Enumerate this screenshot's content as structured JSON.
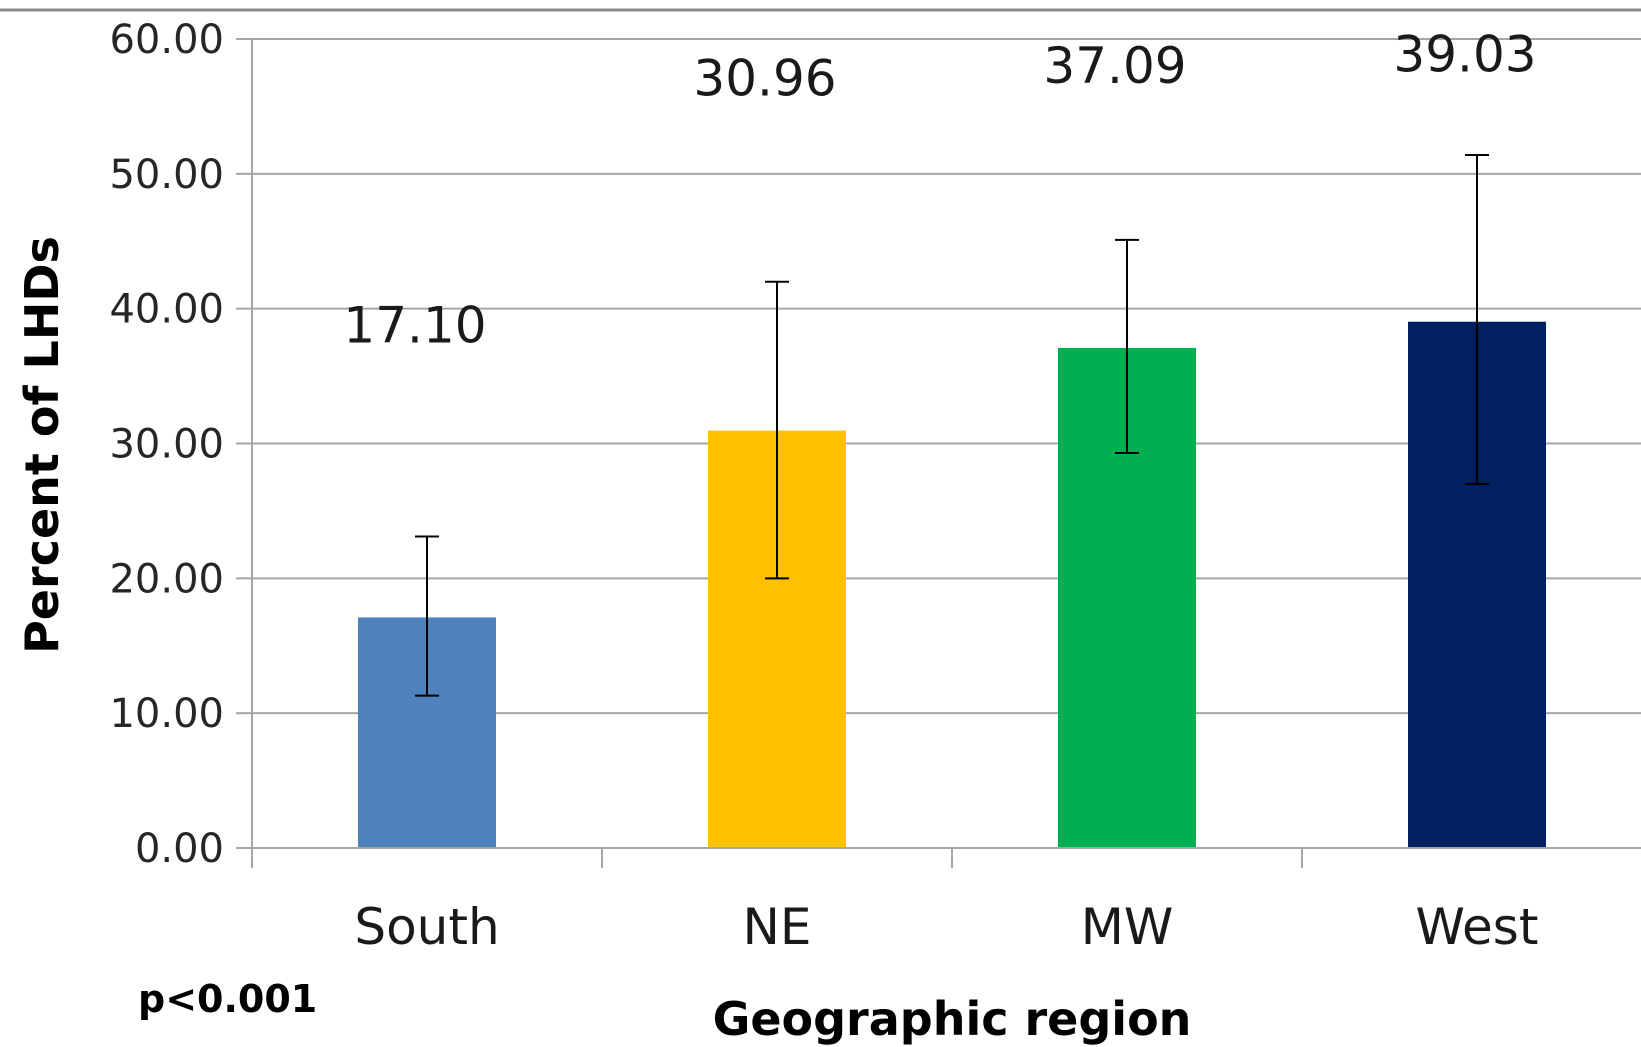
{
  "chart_data": {
    "type": "bar",
    "categories": [
      "South",
      "NE",
      "MW",
      "West"
    ],
    "values": [
      17.1,
      30.96,
      37.09,
      39.03
    ],
    "value_labels": [
      "17.10",
      "30.96",
      "37.09",
      "39.03"
    ],
    "error_bars": {
      "lower": [
        11.3,
        20.0,
        29.3,
        27.0
      ],
      "upper": [
        23.1,
        42.0,
        45.1,
        51.4
      ]
    },
    "colors": [
      "#4f81bd",
      "#ffc000",
      "#00b050",
      "#002060"
    ],
    "xlabel": "Geographic region",
    "ylabel": "Percent of LHDs",
    "ylim": [
      0,
      60
    ],
    "yticks": [
      0,
      10,
      20,
      30,
      40,
      50,
      60
    ],
    "ytick_labels": [
      "0.00",
      "10.00",
      "20.00",
      "30.00",
      "40.00",
      "50.00",
      "60.00"
    ],
    "grid": true,
    "annotation": "p<0.001"
  }
}
